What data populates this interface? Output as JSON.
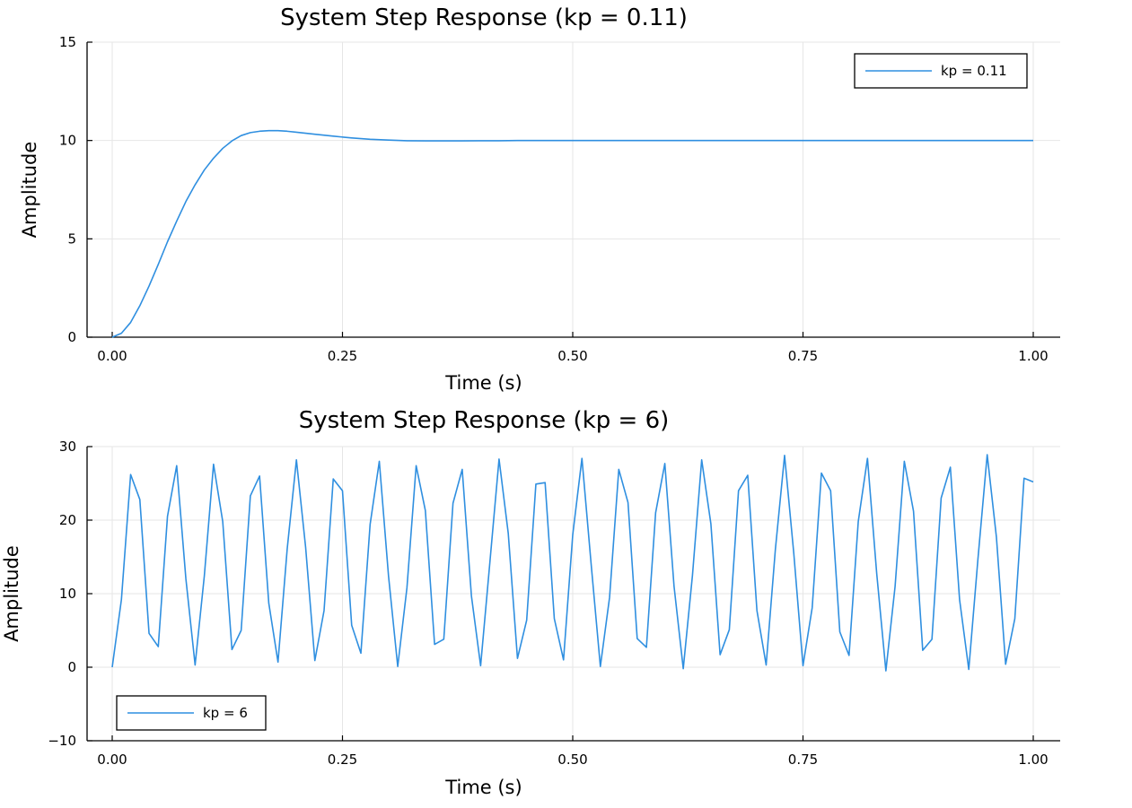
{
  "chart_data": [
    {
      "type": "line",
      "title": "System Step Response (kp = 0.11)",
      "xlabel": "Time (s)",
      "ylabel": "Amplitude",
      "xlim": [
        0,
        1
      ],
      "ylim": [
        0,
        15
      ],
      "xticks": [
        0,
        0.25,
        0.5,
        0.75,
        1.0
      ],
      "xtick_labels": [
        "0.00",
        "0.25",
        "0.50",
        "0.75",
        "1.00"
      ],
      "yticks": [
        0,
        5,
        10,
        15
      ],
      "ytick_labels": [
        "0",
        "5",
        "10",
        "15"
      ],
      "grid": true,
      "legend_position": "top-right",
      "series": [
        {
          "name": "kp = 0.11",
          "color": "#2f8fe0",
          "x": [
            0,
            0.01,
            0.02,
            0.03,
            0.04,
            0.05,
            0.06,
            0.07,
            0.08,
            0.09,
            0.1,
            0.11,
            0.12,
            0.13,
            0.14,
            0.15,
            0.16,
            0.17,
            0.18,
            0.19,
            0.2,
            0.22,
            0.24,
            0.26,
            0.28,
            0.3,
            0.32,
            0.34,
            0.36,
            0.38,
            0.4,
            0.42,
            0.44,
            0.46,
            0.48,
            0.5,
            0.55,
            0.6,
            0.65,
            0.7,
            0.75,
            0.8,
            0.85,
            0.9,
            0.95,
            1.0
          ],
          "y": [
            0,
            0.2,
            0.75,
            1.6,
            2.6,
            3.7,
            4.85,
            5.9,
            6.9,
            7.75,
            8.5,
            9.1,
            9.6,
            9.98,
            10.25,
            10.4,
            10.47,
            10.5,
            10.5,
            10.47,
            10.42,
            10.32,
            10.22,
            10.13,
            10.06,
            10.02,
            9.99,
            9.98,
            9.98,
            9.98,
            9.99,
            9.99,
            10.0,
            10.0,
            10.0,
            10.0,
            10.0,
            10.0,
            10.0,
            10.0,
            10.0,
            10.0,
            10.0,
            10.0,
            10.0,
            10.0
          ]
        }
      ]
    },
    {
      "type": "line",
      "title": "System Step Response (kp = 6)",
      "xlabel": "Time (s)",
      "ylabel": "Amplitude",
      "xlim": [
        0,
        1
      ],
      "ylim": [
        -10,
        30
      ],
      "xticks": [
        0,
        0.25,
        0.5,
        0.75,
        1.0
      ],
      "xtick_labels": [
        "0.00",
        "0.25",
        "0.50",
        "0.75",
        "1.00"
      ],
      "yticks": [
        -10,
        0,
        10,
        20,
        30
      ],
      "ytick_labels": [
        "−10",
        "0",
        "10",
        "20",
        "30"
      ],
      "grid": true,
      "legend_position": "bottom-left",
      "series": [
        {
          "name": "kp = 6",
          "color": "#2f8fe0",
          "x": [
            0,
            0.01,
            0.02,
            0.03,
            0.04,
            0.05,
            0.06,
            0.07,
            0.08,
            0.09,
            0.1,
            0.11,
            0.12,
            0.13,
            0.14,
            0.15,
            0.16,
            0.17,
            0.18,
            0.19,
            0.2,
            0.21,
            0.22,
            0.23,
            0.24,
            0.25,
            0.26,
            0.27,
            0.28,
            0.29,
            0.3,
            0.31,
            0.32,
            0.33,
            0.34,
            0.35,
            0.36,
            0.37,
            0.38,
            0.39,
            0.4,
            0.41,
            0.42,
            0.43,
            0.44,
            0.45,
            0.46,
            0.47,
            0.48,
            0.49,
            0.5,
            0.51,
            0.52,
            0.53,
            0.54,
            0.55,
            0.56,
            0.57,
            0.58,
            0.59,
            0.6,
            0.61,
            0.62,
            0.63,
            0.64,
            0.65,
            0.66,
            0.67,
            0.68,
            0.69,
            0.7,
            0.71,
            0.72,
            0.73,
            0.74,
            0.75,
            0.76,
            0.77,
            0.78,
            0.79,
            0.8,
            0.81,
            0.82,
            0.83,
            0.84,
            0.85,
            0.86,
            0.87,
            0.88,
            0.89,
            0.9,
            0.91,
            0.92,
            0.93,
            0.94,
            0.95,
            0.96,
            0.97,
            0.98,
            0.99,
            1.0
          ],
          "y": [
            0,
            9.2,
            26.2,
            22.8,
            4.6,
            2.8,
            20.5,
            27.4,
            12.0,
            0.3,
            12.4,
            27.6,
            19.8,
            2.4,
            5.0,
            23.3,
            26.0,
            8.7,
            0.7,
            16.1,
            28.2,
            16.3,
            0.9,
            7.7,
            25.6,
            24.0,
            5.7,
            1.9,
            19.4,
            28.0,
            12.4,
            0.1,
            10.8,
            27.4,
            21.3,
            3.1,
            3.8,
            22.3,
            26.9,
            9.7,
            0.2,
            14.2,
            28.3,
            18.2,
            1.2,
            6.4,
            24.9,
            25.1,
            6.6,
            1.0,
            18.0,
            28.4,
            14.0,
            0.1,
            9.5,
            26.9,
            22.4,
            3.9,
            2.7,
            21.0,
            27.7,
            11.0,
            -0.2,
            12.5,
            28.2,
            19.5,
            1.7,
            5.1,
            24.0,
            26.1,
            7.7,
            0.3,
            16.0,
            28.8,
            15.5,
            0.2,
            8.1,
            26.4,
            24.0,
            4.8,
            1.6,
            19.8,
            28.4,
            12.8,
            -0.5,
            11.0,
            28.0,
            21.2,
            2.3,
            3.8,
            23.0,
            27.2,
            9.2,
            -0.3,
            14.8,
            28.9,
            17.7,
            0.4,
            6.6,
            25.7,
            25.2
          ]
        }
      ]
    }
  ]
}
